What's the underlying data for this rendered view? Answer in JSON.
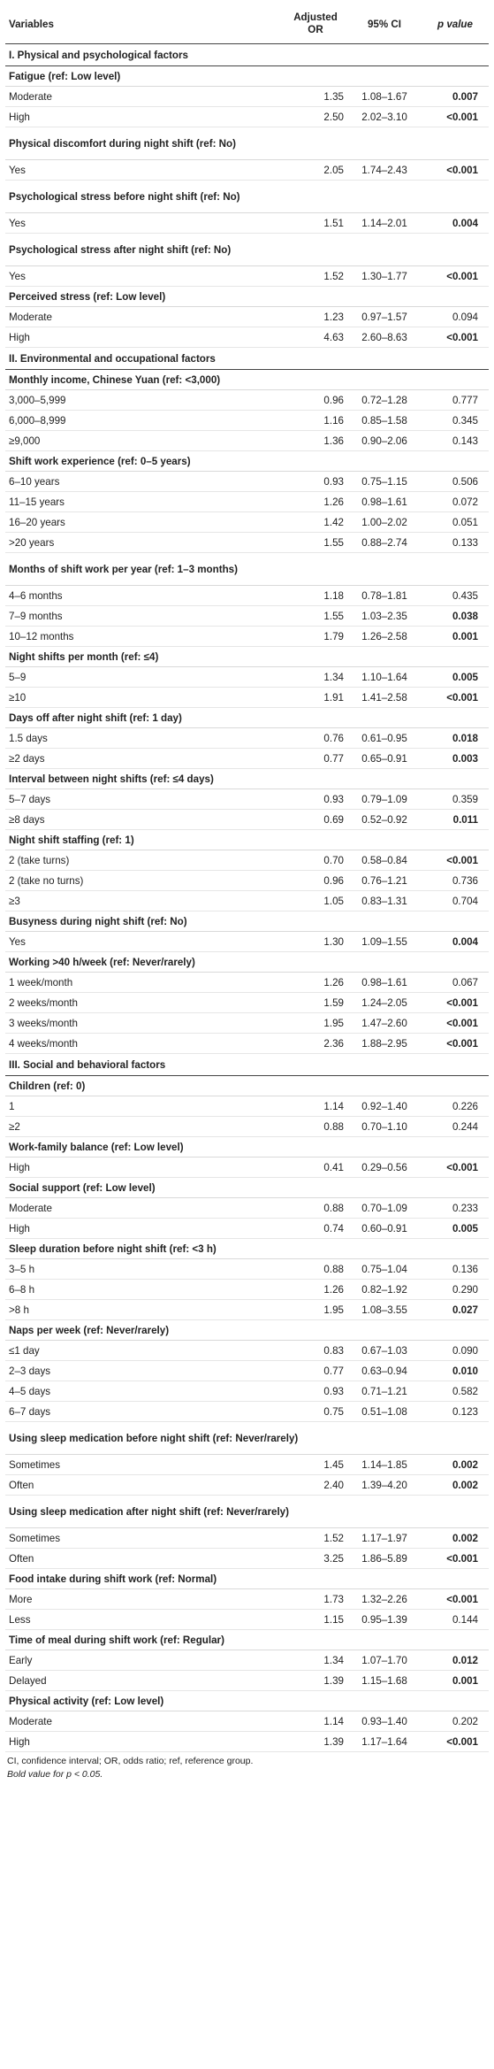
{
  "header": {
    "variables": "Variables",
    "or": "Adjusted OR",
    "ci": "95% CI",
    "p": "p value"
  },
  "sections": [
    {
      "title": "I. Physical and psychological factors",
      "groups": [
        {
          "label": "Fatigue (ref: Low level)",
          "rows": [
            {
              "level": "Moderate",
              "or": "1.35",
              "ci": "1.08–1.67",
              "p": "0.007",
              "bold": true
            },
            {
              "level": "High",
              "or": "2.50",
              "ci": "2.02–3.10",
              "p": "<0.001",
              "bold": true
            }
          ]
        },
        {
          "label": "Physical discomfort during night shift (ref: No)",
          "rows": [
            {
              "level": "Yes",
              "or": "2.05",
              "ci": "1.74–2.43",
              "p": "<0.001",
              "bold": true
            }
          ]
        },
        {
          "label": "Psychological stress before night shift (ref: No)",
          "rows": [
            {
              "level": "Yes",
              "or": "1.51",
              "ci": "1.14–2.01",
              "p": "0.004",
              "bold": true
            }
          ]
        },
        {
          "label": "Psychological stress after night shift (ref: No)",
          "rows": [
            {
              "level": "Yes",
              "or": "1.52",
              "ci": "1.30–1.77",
              "p": "<0.001",
              "bold": true
            }
          ]
        },
        {
          "label": "Perceived stress (ref: Low level)",
          "rows": [
            {
              "level": "Moderate",
              "or": "1.23",
              "ci": "0.97–1.57",
              "p": "0.094",
              "bold": false
            },
            {
              "level": "High",
              "or": "4.63",
              "ci": "2.60–8.63",
              "p": "<0.001",
              "bold": true
            }
          ]
        }
      ]
    },
    {
      "title": "II. Environmental and occupational factors",
      "groups": [
        {
          "label": "Monthly income, Chinese Yuan (ref: <3,000)",
          "rows": [
            {
              "level": "3,000–5,999",
              "or": "0.96",
              "ci": "0.72–1.28",
              "p": "0.777",
              "bold": false
            },
            {
              "level": "6,000–8,999",
              "or": "1.16",
              "ci": "0.85–1.58",
              "p": "0.345",
              "bold": false
            },
            {
              "level": "≥9,000",
              "or": "1.36",
              "ci": "0.90–2.06",
              "p": "0.143",
              "bold": false
            }
          ]
        },
        {
          "label": "Shift work experience (ref: 0–5 years)",
          "rows": [
            {
              "level": "6–10 years",
              "or": "0.93",
              "ci": "0.75–1.15",
              "p": "0.506",
              "bold": false
            },
            {
              "level": "11–15 years",
              "or": "1.26",
              "ci": "0.98–1.61",
              "p": "0.072",
              "bold": false
            },
            {
              "level": "16–20 years",
              "or": "1.42",
              "ci": "1.00–2.02",
              "p": "0.051",
              "bold": false
            },
            {
              "level": ">20 years",
              "or": "1.55",
              "ci": "0.88–2.74",
              "p": "0.133",
              "bold": false
            }
          ]
        },
        {
          "label": "Months of shift work per year (ref: 1–3 months)",
          "rows": [
            {
              "level": "4–6 months",
              "or": "1.18",
              "ci": "0.78–1.81",
              "p": "0.435",
              "bold": false
            },
            {
              "level": "7–9 months",
              "or": "1.55",
              "ci": "1.03–2.35",
              "p": "0.038",
              "bold": true
            },
            {
              "level": "10–12 months",
              "or": "1.79",
              "ci": "1.26–2.58",
              "p": "0.001",
              "bold": true
            }
          ]
        },
        {
          "label": "Night shifts per month (ref: ≤4)",
          "rows": [
            {
              "level": "5–9",
              "or": "1.34",
              "ci": "1.10–1.64",
              "p": "0.005",
              "bold": true
            },
            {
              "level": "≥10",
              "or": "1.91",
              "ci": "1.41–2.58",
              "p": "<0.001",
              "bold": true
            }
          ]
        },
        {
          "label": "Days off after night shift (ref: 1 day)",
          "rows": [
            {
              "level": "1.5 days",
              "or": "0.76",
              "ci": "0.61–0.95",
              "p": "0.018",
              "bold": true
            },
            {
              "level": "≥2 days",
              "or": "0.77",
              "ci": "0.65–0.91",
              "p": "0.003",
              "bold": true
            }
          ]
        },
        {
          "label": "Interval between night shifts (ref: ≤4 days)",
          "rows": [
            {
              "level": "5–7 days",
              "or": "0.93",
              "ci": "0.79–1.09",
              "p": "0.359",
              "bold": false
            },
            {
              "level": "≥8 days",
              "or": "0.69",
              "ci": "0.52–0.92",
              "p": "0.011",
              "bold": true
            }
          ]
        },
        {
          "label": "Night shift staffing (ref: 1)",
          "rows": [
            {
              "level": "2 (take turns)",
              "or": "0.70",
              "ci": "0.58–0.84",
              "p": "<0.001",
              "bold": true
            },
            {
              "level": "2 (take no turns)",
              "or": "0.96",
              "ci": "0.76–1.21",
              "p": "0.736",
              "bold": false
            },
            {
              "level": "≥3",
              "or": "1.05",
              "ci": "0.83–1.31",
              "p": "0.704",
              "bold": false
            }
          ]
        },
        {
          "label": "Busyness during night shift (ref: No)",
          "rows": [
            {
              "level": "Yes",
              "or": "1.30",
              "ci": "1.09–1.55",
              "p": "0.004",
              "bold": true
            }
          ]
        },
        {
          "label": "Working >40 h/week (ref: Never/rarely)",
          "rows": [
            {
              "level": "1 week/month",
              "or": "1.26",
              "ci": "0.98–1.61",
              "p": "0.067",
              "bold": false
            },
            {
              "level": "2 weeks/month",
              "or": "1.59",
              "ci": "1.24–2.05",
              "p": "<0.001",
              "bold": true
            },
            {
              "level": "3 weeks/month",
              "or": "1.95",
              "ci": "1.47–2.60",
              "p": "<0.001",
              "bold": true
            },
            {
              "level": "4 weeks/month",
              "or": "2.36",
              "ci": "1.88–2.95",
              "p": "<0.001",
              "bold": true
            }
          ]
        }
      ]
    },
    {
      "title": "III. Social and behavioral factors",
      "groups": [
        {
          "label": "Children (ref: 0)",
          "rows": [
            {
              "level": "1",
              "or": "1.14",
              "ci": "0.92–1.40",
              "p": "0.226",
              "bold": false
            },
            {
              "level": "≥2",
              "or": "0.88",
              "ci": "0.70–1.10",
              "p": "0.244",
              "bold": false
            }
          ]
        },
        {
          "label": "Work-family balance (ref: Low level)",
          "rows": [
            {
              "level": "High",
              "or": "0.41",
              "ci": "0.29–0.56",
              "p": "<0.001",
              "bold": true
            }
          ]
        },
        {
          "label": "Social support (ref: Low level)",
          "rows": [
            {
              "level": "Moderate",
              "or": "0.88",
              "ci": "0.70–1.09",
              "p": "0.233",
              "bold": false
            },
            {
              "level": "High",
              "or": "0.74",
              "ci": "0.60–0.91",
              "p": "0.005",
              "bold": true
            }
          ]
        },
        {
          "label": "Sleep duration before night shift (ref: <3 h)",
          "rows": [
            {
              "level": "3–5 h",
              "or": "0.88",
              "ci": "0.75–1.04",
              "p": "0.136",
              "bold": false
            },
            {
              "level": "6–8 h",
              "or": "1.26",
              "ci": "0.82–1.92",
              "p": "0.290",
              "bold": false
            },
            {
              "level": ">8 h",
              "or": "1.95",
              "ci": "1.08–3.55",
              "p": "0.027",
              "bold": true
            }
          ]
        },
        {
          "label": "Naps per week (ref: Never/rarely)",
          "rows": [
            {
              "level": "≤1 day",
              "or": "0.83",
              "ci": "0.67–1.03",
              "p": "0.090",
              "bold": false
            },
            {
              "level": "2–3 days",
              "or": "0.77",
              "ci": "0.63–0.94",
              "p": "0.010",
              "bold": true
            },
            {
              "level": "4–5 days",
              "or": "0.93",
              "ci": "0.71–1.21",
              "p": "0.582",
              "bold": false
            },
            {
              "level": "6–7 days",
              "or": "0.75",
              "ci": "0.51–1.08",
              "p": "0.123",
              "bold": false
            }
          ]
        },
        {
          "label": "Using sleep medication before night shift (ref: Never/rarely)",
          "rows": [
            {
              "level": "Sometimes",
              "or": "1.45",
              "ci": "1.14–1.85",
              "p": "0.002",
              "bold": true
            },
            {
              "level": "Often",
              "or": "2.40",
              "ci": "1.39–4.20",
              "p": "0.002",
              "bold": true
            }
          ]
        },
        {
          "label": "Using sleep medication after night shift (ref: Never/rarely)",
          "rows": [
            {
              "level": "Sometimes",
              "or": "1.52",
              "ci": "1.17–1.97",
              "p": "0.002",
              "bold": true
            },
            {
              "level": "Often",
              "or": "3.25",
              "ci": "1.86–5.89",
              "p": "<0.001",
              "bold": true
            }
          ]
        },
        {
          "label": "Food intake during shift work (ref: Normal)",
          "rows": [
            {
              "level": "More",
              "or": "1.73",
              "ci": "1.32–2.26",
              "p": "<0.001",
              "bold": true
            },
            {
              "level": "Less",
              "or": "1.15",
              "ci": "0.95–1.39",
              "p": "0.144",
              "bold": false
            }
          ]
        },
        {
          "label": "Time of meal during shift work (ref: Regular)",
          "rows": [
            {
              "level": "Early",
              "or": "1.34",
              "ci": "1.07–1.70",
              "p": "0.012",
              "bold": true
            },
            {
              "level": "Delayed",
              "or": "1.39",
              "ci": "1.15–1.68",
              "p": "0.001",
              "bold": true
            }
          ]
        },
        {
          "label": "Physical activity (ref: Low level)",
          "rows": [
            {
              "level": "Moderate",
              "or": "1.14",
              "ci": "0.93–1.40",
              "p": "0.202",
              "bold": false
            },
            {
              "level": "High",
              "or": "1.39",
              "ci": "1.17–1.64",
              "p": "<0.001",
              "bold": true
            }
          ]
        }
      ]
    }
  ],
  "footnotes": [
    "CI, confidence interval; OR, odds ratio; ref, reference group.",
    "Bold value for p < 0.05."
  ]
}
